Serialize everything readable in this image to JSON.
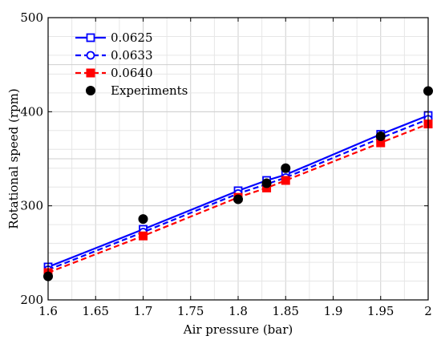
{
  "chart_data": {
    "type": "line",
    "xlabel": "Air pressure (bar)",
    "ylabel": "Rotational speed (rpm)",
    "xlim": [
      1.6,
      2.0
    ],
    "ylim": [
      200,
      500
    ],
    "x_ticks": [
      "1.6",
      "1.65",
      "1.7",
      "1.75",
      "1.8",
      "1.85",
      "1.9",
      "1.95",
      "2"
    ],
    "y_ticks": [
      "200",
      "300",
      "400",
      "500"
    ],
    "grid": true,
    "legend_position": "top-left",
    "x": [
      1.6,
      1.7,
      1.8,
      1.83,
      1.85,
      1.95,
      2.0
    ],
    "series": [
      {
        "name": "0.0625",
        "style": "solid-line-open-square",
        "color": "#0000ff",
        "values": [
          235,
          275,
          316,
          327,
          333,
          376,
          396
        ]
      },
      {
        "name": "0.0633",
        "style": "dashed-line-open-circle",
        "color": "#0000ff",
        "values": [
          232,
          272,
          313,
          323,
          330,
          372,
          392
        ]
      },
      {
        "name": "0.0640",
        "style": "dashed-line-filled-square",
        "color": "#ff0000",
        "values": [
          229,
          268,
          309,
          319,
          327,
          367,
          387
        ]
      },
      {
        "name": "Experiments",
        "style": "markers-filled-circle",
        "color": "#000000",
        "values": [
          225,
          286,
          307,
          324,
          340,
          374,
          422
        ]
      }
    ]
  }
}
